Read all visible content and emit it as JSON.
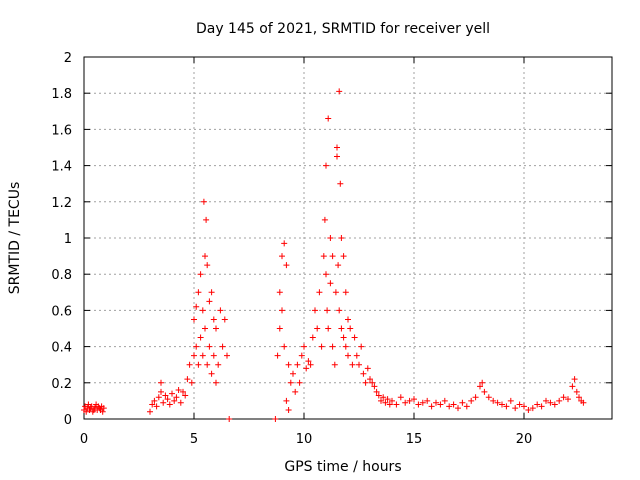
{
  "chart_data": {
    "type": "scatter",
    "title": "Day 145 of 2021, SRMTID for receiver yell",
    "xlabel": "GPS time / hours",
    "ylabel": "SRMTID / TECUs",
    "xlim": [
      0,
      24
    ],
    "ylim": [
      0,
      2
    ],
    "grid": true,
    "marker": "+",
    "color": "#ff0000",
    "x_ticks": [
      0,
      5,
      10,
      15,
      20
    ],
    "x_tick_labels": [
      "0",
      "5",
      "10",
      "15",
      "20"
    ],
    "y_ticks": [
      0,
      0.2,
      0.4,
      0.6,
      0.8,
      1,
      1.2,
      1.4,
      1.6,
      1.8,
      2
    ],
    "y_tick_labels": [
      "0",
      "0.2",
      "0.4",
      "0.6",
      "0.8",
      "1",
      "1.2",
      "1.4",
      "1.6",
      "1.8",
      "2"
    ],
    "series": [
      {
        "name": "SRMTID",
        "x": [
          0.0,
          0.05,
          0.1,
          0.15,
          0.2,
          0.25,
          0.3,
          0.35,
          0.4,
          0.45,
          0.5,
          0.55,
          0.6,
          0.65,
          0.7,
          0.75,
          0.8,
          0.85,
          0.9,
          3.0,
          3.1,
          3.2,
          3.3,
          3.4,
          3.5,
          3.5,
          3.6,
          3.7,
          3.8,
          3.9,
          4.0,
          4.1,
          4.2,
          4.3,
          4.4,
          4.5,
          4.6,
          4.7,
          4.8,
          4.9,
          5.0,
          5.0,
          5.1,
          5.1,
          5.2,
          5.2,
          5.3,
          5.3,
          5.4,
          5.4,
          5.45,
          5.5,
          5.5,
          5.55,
          5.6,
          5.6,
          5.7,
          5.7,
          5.8,
          5.8,
          5.9,
          5.9,
          6.0,
          6.0,
          6.1,
          6.2,
          6.3,
          6.4,
          6.5,
          6.6,
          8.7,
          8.8,
          8.9,
          8.9,
          9.0,
          9.0,
          9.1,
          9.1,
          9.2,
          9.2,
          9.3,
          9.3,
          9.4,
          9.5,
          9.6,
          9.7,
          9.8,
          9.9,
          10.0,
          10.1,
          10.2,
          10.3,
          10.4,
          10.5,
          10.6,
          10.7,
          10.8,
          10.9,
          10.95,
          11.0,
          11.0,
          11.05,
          11.1,
          11.1,
          11.2,
          11.2,
          11.3,
          11.3,
          11.4,
          11.45,
          11.5,
          11.5,
          11.55,
          11.6,
          11.6,
          11.65,
          11.7,
          11.7,
          11.8,
          11.8,
          11.9,
          11.9,
          12.0,
          12.0,
          12.1,
          12.2,
          12.3,
          12.4,
          12.5,
          12.6,
          12.7,
          12.8,
          12.9,
          13.0,
          13.1,
          13.2,
          13.3,
          13.4,
          13.5,
          13.6,
          13.7,
          13.8,
          13.9,
          14.0,
          14.2,
          14.4,
          14.6,
          14.8,
          15.0,
          15.2,
          15.4,
          15.6,
          15.8,
          16.0,
          16.2,
          16.4,
          16.6,
          16.8,
          17.0,
          17.2,
          17.4,
          17.6,
          17.8,
          18.0,
          18.1,
          18.2,
          18.4,
          18.6,
          18.8,
          19.0,
          19.2,
          19.4,
          19.6,
          19.8,
          20.0,
          20.2,
          20.4,
          20.6,
          20.8,
          21.0,
          21.2,
          21.4,
          21.6,
          21.8,
          22.0,
          22.2,
          22.3,
          22.4,
          22.5,
          22.6,
          22.7
        ],
        "y": [
          0.05,
          0.07,
          0.04,
          0.06,
          0.08,
          0.05,
          0.06,
          0.07,
          0.04,
          0.05,
          0.06,
          0.08,
          0.05,
          0.07,
          0.06,
          0.05,
          0.07,
          0.04,
          0.06,
          0.04,
          0.08,
          0.1,
          0.07,
          0.12,
          0.2,
          0.15,
          0.09,
          0.13,
          0.11,
          0.08,
          0.14,
          0.1,
          0.12,
          0.16,
          0.09,
          0.15,
          0.13,
          0.22,
          0.3,
          0.2,
          0.35,
          0.55,
          0.4,
          0.62,
          0.3,
          0.7,
          0.45,
          0.8,
          0.35,
          0.6,
          1.2,
          0.9,
          0.5,
          1.1,
          0.3,
          0.85,
          0.65,
          0.4,
          0.7,
          0.25,
          0.55,
          0.35,
          0.5,
          0.2,
          0.3,
          0.6,
          0.4,
          0.55,
          0.35,
          0.0,
          0.0,
          0.35,
          0.7,
          0.5,
          0.9,
          0.6,
          0.97,
          0.4,
          0.85,
          0.1,
          0.05,
          0.3,
          0.2,
          0.25,
          0.15,
          0.3,
          0.2,
          0.35,
          0.4,
          0.28,
          0.32,
          0.3,
          0.45,
          0.6,
          0.5,
          0.7,
          0.4,
          0.9,
          1.1,
          0.8,
          1.4,
          0.6,
          1.66,
          0.5,
          0.75,
          1.0,
          0.4,
          0.9,
          0.3,
          0.7,
          1.45,
          1.5,
          0.85,
          1.81,
          0.6,
          1.3,
          0.5,
          1.0,
          0.45,
          0.9,
          0.4,
          0.7,
          0.35,
          0.55,
          0.5,
          0.3,
          0.45,
          0.35,
          0.3,
          0.4,
          0.25,
          0.2,
          0.28,
          0.22,
          0.2,
          0.18,
          0.15,
          0.13,
          0.1,
          0.12,
          0.09,
          0.11,
          0.08,
          0.1,
          0.08,
          0.12,
          0.09,
          0.1,
          0.11,
          0.08,
          0.09,
          0.1,
          0.07,
          0.09,
          0.08,
          0.1,
          0.07,
          0.08,
          0.06,
          0.09,
          0.07,
          0.1,
          0.12,
          0.18,
          0.2,
          0.15,
          0.12,
          0.1,
          0.09,
          0.08,
          0.07,
          0.1,
          0.06,
          0.08,
          0.07,
          0.05,
          0.06,
          0.08,
          0.07,
          0.1,
          0.09,
          0.08,
          0.1,
          0.12,
          0.11,
          0.18,
          0.22,
          0.15,
          0.12,
          0.1,
          0.09
        ]
      }
    ]
  }
}
